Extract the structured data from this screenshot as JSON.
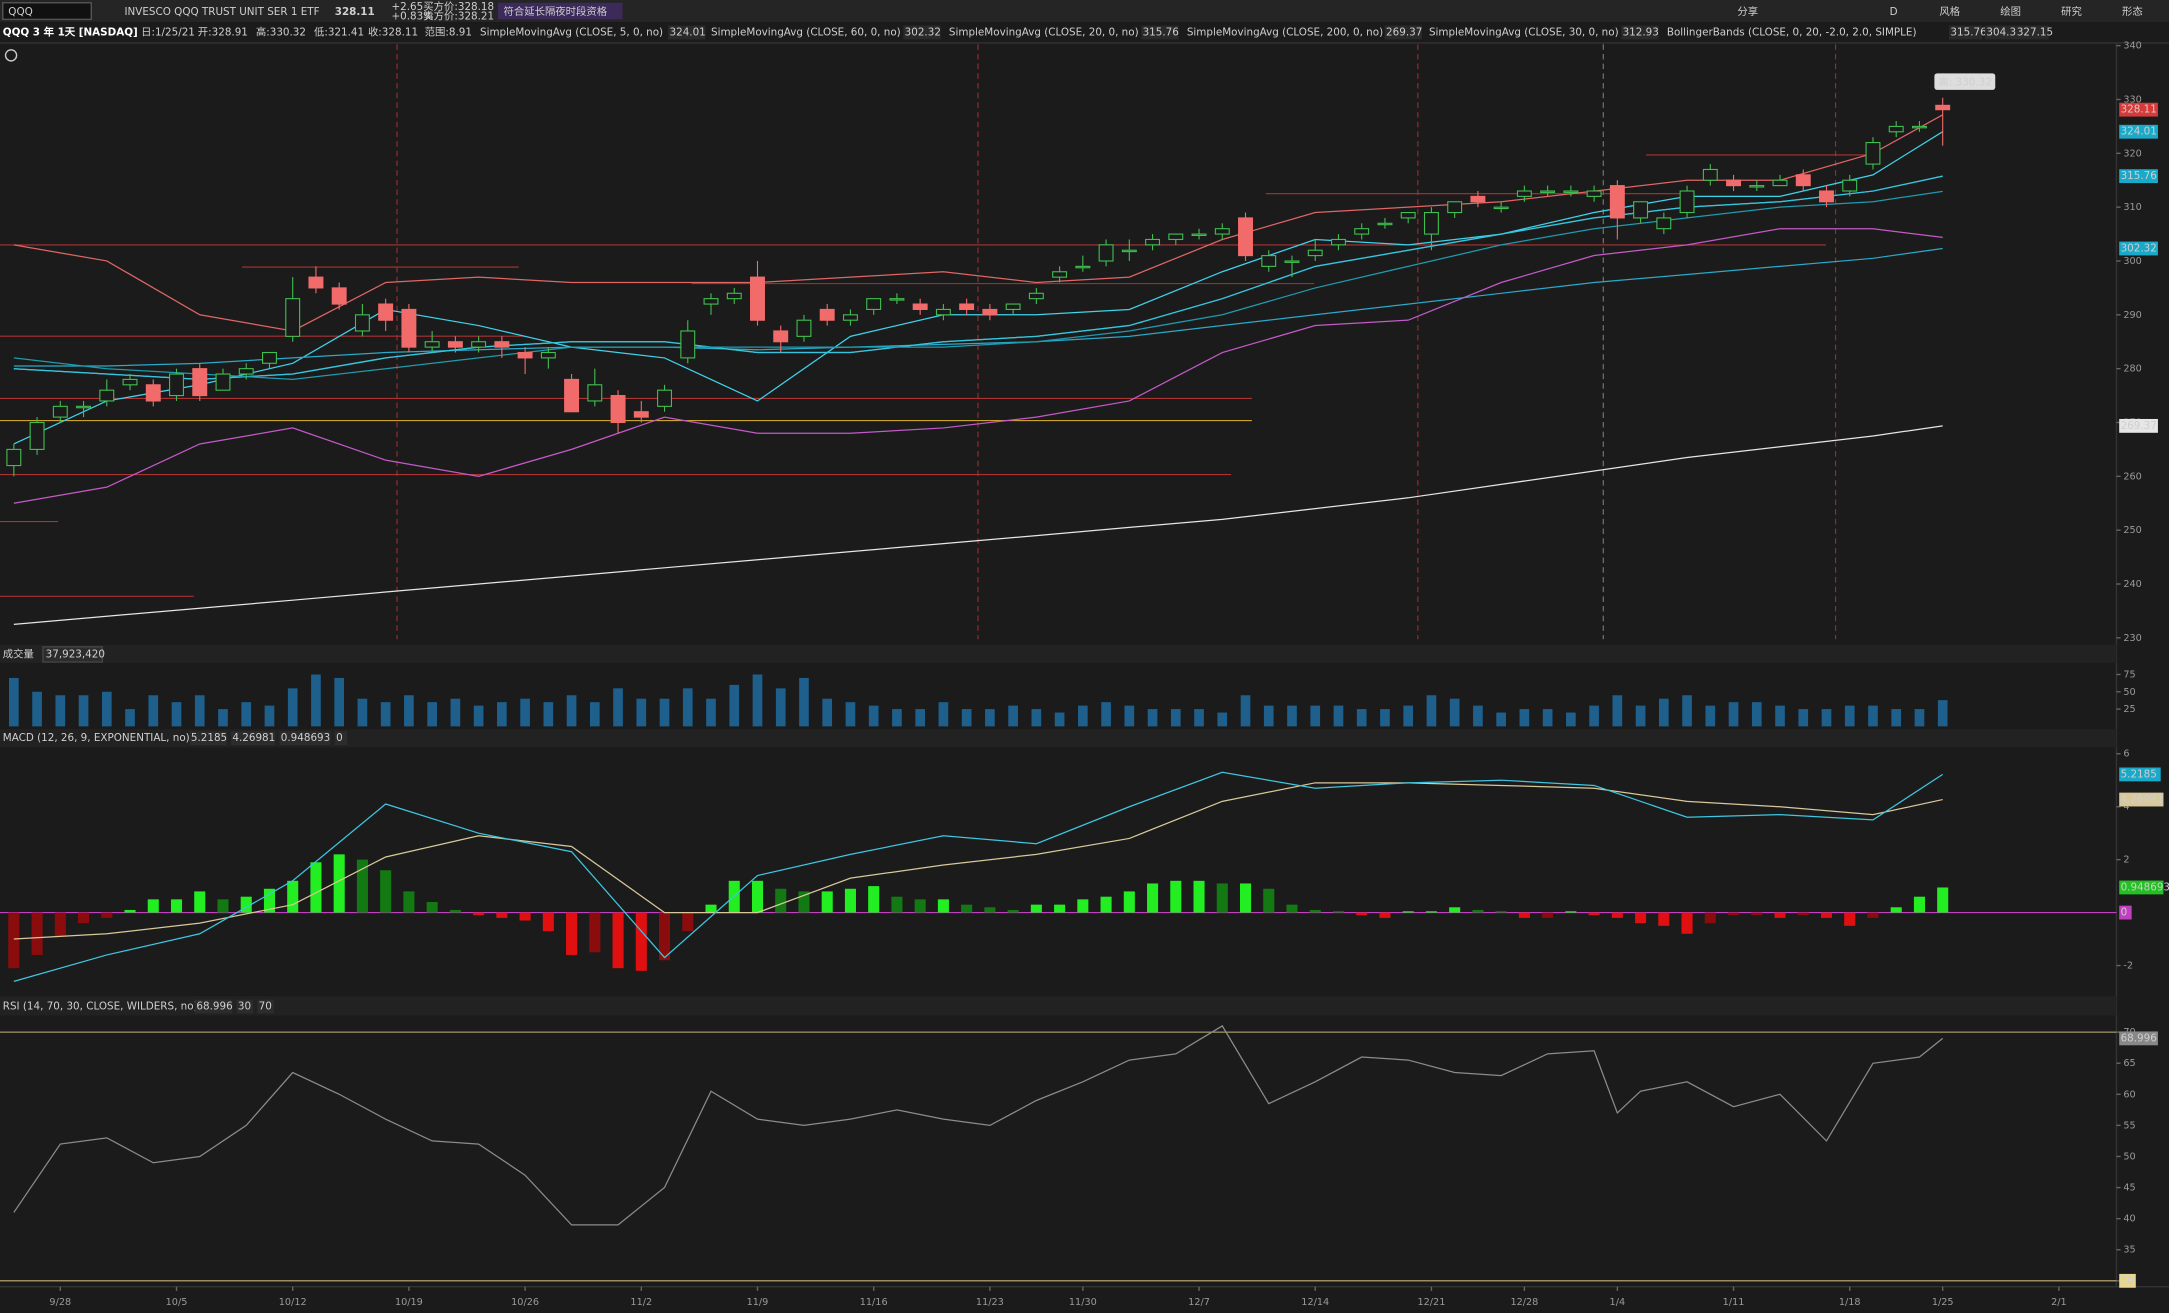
{
  "toolbar": {
    "symbol": "QQQ",
    "description": "INVESCO QQQ TRUST UNIT SER 1 ETF",
    "last": 328.11,
    "change": "+2.65",
    "change_pct": "+0.83%",
    "bid": "买方价:328.18",
    "ask": "卖方价:328.21",
    "extended": "符合延长隔夜时段资格",
    "buttons": [
      "分享",
      "D",
      "风格",
      "绘图",
      "研究",
      "形态"
    ]
  },
  "chart_info": {
    "title": "QQQ 3 年 1天 [NASDAQ]",
    "fields": [
      "日:1/25/21",
      "开:328.91",
      "高:330.32",
      "低:321.41",
      "收:328.11",
      "范围:8.91"
    ]
  },
  "x_axis": {
    "ticks": [
      {
        "value": 2,
        "label": "9/28"
      },
      {
        "value": 7,
        "label": "10/5"
      },
      {
        "value": 12,
        "label": "10/12"
      },
      {
        "value": 17,
        "label": "10/19"
      },
      {
        "value": 22,
        "label": "10/26"
      },
      {
        "value": 27,
        "label": "11/2"
      },
      {
        "value": 32,
        "label": "11/9"
      },
      {
        "value": 37,
        "label": "11/16"
      },
      {
        "value": 42,
        "label": "11/23"
      },
      {
        "value": 46,
        "label": "11/30"
      },
      {
        "value": 51,
        "label": "12/7"
      },
      {
        "value": 56,
        "label": "12/14"
      },
      {
        "value": 61,
        "label": "12/21"
      },
      {
        "value": 65,
        "label": "12/28"
      },
      {
        "value": 69,
        "label": "1/4"
      },
      {
        "value": 74,
        "label": "1/11"
      },
      {
        "value": 79,
        "label": "1/18"
      },
      {
        "value": 83,
        "label": "1/25"
      },
      {
        "value": 88,
        "label": "2/1"
      }
    ]
  },
  "price_panel": {
    "ylim": [
      230,
      340
    ],
    "yticks": [
      230,
      240,
      250,
      260,
      270,
      280,
      290,
      300,
      310,
      320,
      330,
      340
    ],
    "high_callout": "高: 330.32",
    "candles": [
      [
        262,
        266,
        260,
        265
      ],
      [
        265,
        271,
        264,
        270
      ],
      [
        271,
        274,
        270,
        273
      ],
      [
        273,
        274,
        271,
        273
      ],
      [
        274,
        278,
        273,
        276
      ],
      [
        277,
        279,
        276,
        278
      ],
      [
        277,
        278,
        273,
        274
      ],
      [
        275,
        280,
        274,
        279
      ],
      [
        280,
        281,
        274,
        275
      ],
      [
        276,
        280,
        276,
        279
      ],
      [
        279,
        281,
        278,
        280
      ],
      [
        281,
        283,
        280,
        283
      ],
      [
        286,
        297,
        285,
        293
      ],
      [
        297,
        299,
        294,
        295
      ],
      [
        295,
        296,
        291,
        292
      ],
      [
        287,
        292,
        286,
        290
      ],
      [
        292,
        293,
        287,
        289
      ],
      [
        291,
        292,
        283,
        284
      ],
      [
        284,
        287,
        283,
        285
      ],
      [
        285,
        286,
        283,
        284
      ],
      [
        284,
        286,
        283,
        285
      ],
      [
        285,
        286,
        282,
        284
      ],
      [
        283,
        284,
        279,
        282
      ],
      [
        282,
        284,
        280,
        283
      ],
      [
        278,
        279,
        272,
        272
      ],
      [
        274,
        280,
        273,
        277
      ],
      [
        275,
        276,
        268,
        270
      ],
      [
        272,
        274,
        270,
        271
      ],
      [
        273,
        277,
        272,
        276
      ],
      [
        282,
        289,
        281,
        287
      ],
      [
        292,
        294,
        290,
        293
      ],
      [
        293,
        295,
        292,
        294
      ],
      [
        297,
        300,
        288,
        289
      ],
      [
        287,
        288,
        283,
        285
      ],
      [
        286,
        290,
        285,
        289
      ],
      [
        291,
        292,
        288,
        289
      ],
      [
        289,
        291,
        288,
        290
      ],
      [
        291,
        293,
        290,
        293
      ],
      [
        293,
        294,
        292,
        293
      ],
      [
        292,
        293,
        290,
        291
      ],
      [
        290,
        292,
        289,
        291
      ],
      [
        292,
        293,
        290,
        291
      ],
      [
        291,
        292,
        289,
        290
      ],
      [
        291,
        292,
        290,
        292
      ],
      [
        293,
        295,
        292,
        294
      ],
      [
        297,
        299,
        296,
        298
      ],
      [
        299,
        301,
        298,
        299
      ],
      [
        300,
        304,
        299,
        303
      ],
      [
        302,
        304,
        300,
        302
      ],
      [
        303,
        305,
        302,
        304
      ],
      [
        304,
        305,
        303,
        305
      ],
      [
        305,
        306,
        304,
        305
      ],
      [
        305,
        307,
        304,
        306
      ],
      [
        308,
        309,
        300,
        301
      ],
      [
        299,
        302,
        298,
        301
      ],
      [
        300,
        301,
        297,
        300
      ],
      [
        301,
        304,
        300,
        302
      ],
      [
        303,
        305,
        302,
        304
      ],
      [
        305,
        307,
        304,
        306
      ],
      [
        307,
        308,
        306,
        307
      ],
      [
        308,
        309,
        307,
        309
      ],
      [
        305,
        310,
        302,
        309
      ],
      [
        309,
        311,
        308,
        311
      ],
      [
        312,
        313,
        310,
        311
      ],
      [
        310,
        311,
        309,
        310
      ],
      [
        312,
        314,
        311,
        313
      ],
      [
        313,
        314,
        312,
        313
      ],
      [
        313,
        314,
        312,
        313
      ],
      [
        312,
        314,
        311,
        313
      ],
      [
        314,
        315,
        304,
        308
      ],
      [
        308,
        311,
        307,
        311
      ],
      [
        306,
        309,
        305,
        308
      ],
      [
        309,
        314,
        308,
        313
      ],
      [
        315,
        318,
        314,
        317
      ],
      [
        315,
        316,
        313,
        314
      ],
      [
        314,
        315,
        313,
        314
      ],
      [
        314,
        316,
        314,
        315
      ],
      [
        316,
        317,
        313,
        314
      ],
      [
        313,
        314,
        310,
        311
      ],
      [
        313,
        316,
        312,
        315
      ],
      [
        318,
        323,
        317,
        322
      ],
      [
        324,
        326,
        323,
        325
      ],
      [
        325,
        326,
        324,
        325
      ],
      [
        328.91,
        330.32,
        321.41,
        328.11
      ]
    ],
    "sample_x": [
      0,
      4,
      8,
      12,
      16,
      20,
      24,
      28,
      32,
      36,
      40,
      44,
      48,
      52,
      56,
      60,
      64,
      68,
      72,
      76,
      80,
      83
    ],
    "studies": [
      {
        "label": "SimpleMovingAvg (CLOSE, 5, 0, no)",
        "value": 324.01,
        "color": "#3fd3ea",
        "values": [
          266,
          274,
          277,
          281,
          291,
          288,
          284,
          282,
          274,
          286,
          290,
          290,
          291,
          298,
          304,
          303,
          305,
          309,
          312,
          312,
          316,
          324.01
        ]
      },
      {
        "label": "SimpleMovingAvg (CLOSE, 60, 0, no)",
        "value": 302.32,
        "color": "#2aa9c9",
        "values": [
          280.5,
          280.5,
          281,
          282,
          283,
          283.5,
          284,
          284,
          283.5,
          284,
          284.5,
          285,
          286,
          288,
          290,
          292,
          294,
          296,
          297.5,
          299,
          300.5,
          302.32
        ]
      },
      {
        "label": "SimpleMovingAvg (CLOSE, 20, 0, no)",
        "value": 315.76,
        "color": "#36c3dc",
        "values": [
          280,
          279,
          278,
          279,
          282,
          284,
          285,
          285,
          283,
          283,
          285,
          286,
          288,
          293,
          299,
          302,
          305,
          308,
          310,
          311,
          313,
          315.76
        ]
      },
      {
        "label": "SimpleMovingAvg (CLOSE, 200, 0, no)",
        "value": 269.37,
        "color": "#e6e6e6",
        "values": [
          232.5,
          234,
          235.5,
          237,
          238.5,
          240,
          241.5,
          243,
          244.5,
          246,
          247.5,
          249,
          250.5,
          252,
          254,
          256,
          258.5,
          261,
          263.5,
          265.5,
          267.5,
          269.37
        ]
      },
      {
        "label": "SimpleMovingAvg (CLOSE, 30, 0, no)",
        "value": 312.93,
        "color": "#1f9aae",
        "values": [
          282,
          280,
          279,
          278,
          280,
          282,
          284,
          284,
          284,
          284,
          284,
          285,
          287,
          290,
          295,
          299,
          303,
          306,
          308,
          310,
          311,
          312.93
        ]
      }
    ],
    "bollinger": {
      "label": "BollingerBands (CLOSE, 0, 20, -2.0, 2.0, SIMPLE)",
      "bands": [
        {
          "value": 315.76,
          "color": "#36c3dc",
          "values": [
            280,
            279,
            278,
            279,
            282,
            284,
            285,
            285,
            283,
            283,
            285,
            286,
            288,
            293,
            299,
            302,
            305,
            308,
            310,
            311,
            313,
            315.76
          ]
        },
        {
          "value": 304.38,
          "color": "#c45ac8",
          "values": [
            255,
            258,
            266,
            269,
            263,
            260,
            265,
            271,
            268,
            268,
            269,
            271,
            274,
            283,
            288,
            289,
            296,
            301,
            303,
            306,
            306,
            304.38
          ]
        },
        {
          "value": 327.15,
          "color": "#e06666",
          "values": [
            303,
            300,
            290,
            287,
            296,
            297,
            296,
            296,
            296,
            297,
            298,
            296,
            297,
            304,
            309,
            310,
            311,
            313,
            315,
            315,
            320,
            327.15
          ]
        }
      ]
    }
  },
  "volume": {
    "label": "成交量",
    "total": "37,923,420",
    "color": "#1e5f8c",
    "ylim": [
      0,
      90
    ],
    "yticks": [
      25,
      50,
      75
    ],
    "values": [
      70,
      50,
      45,
      45,
      50,
      25,
      45,
      35,
      45,
      25,
      35,
      30,
      55,
      75,
      70,
      40,
      35,
      45,
      35,
      40,
      30,
      35,
      40,
      35,
      45,
      35,
      55,
      40,
      40,
      55,
      40,
      60,
      75,
      55,
      70,
      40,
      35,
      30,
      25,
      25,
      35,
      25,
      25,
      30,
      25,
      20,
      30,
      35,
      30,
      25,
      25,
      25,
      20,
      45,
      30,
      30,
      30,
      30,
      25,
      25,
      30,
      45,
      40,
      30,
      20,
      25,
      25,
      20,
      30,
      45,
      30,
      40,
      45,
      30,
      35,
      35,
      30,
      25,
      25,
      30,
      30,
      25,
      25,
      37.92
    ]
  },
  "macd": {
    "label": "MACD (12, 26, 9, EXPONENTIAL, no)",
    "value": 5.2185,
    "avg": 4.26981,
    "diff": 0.948693,
    "zero": 0,
    "ylim": [
      -3,
      6.25
    ],
    "yticks": [
      -2,
      2,
      4,
      6
    ],
    "histogram": [
      -2.1,
      -1.6,
      -0.9,
      -0.4,
      -0.2,
      0.1,
      0.5,
      0.5,
      0.8,
      0.5,
      0.6,
      0.9,
      1.2,
      1.9,
      2.2,
      2.0,
      1.6,
      0.8,
      0.4,
      0.1,
      -0.1,
      -0.2,
      -0.3,
      -0.7,
      -1.6,
      -1.5,
      -2.1,
      -2.2,
      -1.8,
      -0.7,
      0.3,
      1.2,
      1.2,
      0.9,
      0.8,
      0.8,
      0.9,
      1.0,
      0.6,
      0.5,
      0.5,
      0.3,
      0.2,
      0.1,
      0.3,
      0.3,
      0.5,
      0.6,
      0.8,
      1.1,
      1.2,
      1.2,
      1.1,
      1.1,
      0.9,
      0.3,
      0.1,
      0.05,
      -0.1,
      -0.2,
      0.05,
      0.05,
      0.2,
      0.1,
      0.05,
      -0.2,
      -0.2,
      0.05,
      -0.1,
      -0.2,
      -0.4,
      -0.5,
      -0.8,
      -0.4,
      -0.1,
      -0.1,
      -0.2,
      -0.1,
      -0.2,
      -0.5,
      -0.2,
      0.2,
      0.6,
      0.948693
    ],
    "sample_x": [
      0,
      4,
      8,
      12,
      16,
      20,
      24,
      28,
      32,
      36,
      40,
      44,
      48,
      52,
      56,
      60,
      64,
      68,
      72,
      76,
      80,
      83
    ],
    "line": {
      "color": "#3fc6e0",
      "values": [
        -2.6,
        -1.6,
        -0.8,
        1.2,
        4.1,
        3.0,
        2.3,
        -1.7,
        1.4,
        2.2,
        2.9,
        2.6,
        4.0,
        5.3,
        4.7,
        4.9,
        5.0,
        4.8,
        3.6,
        3.7,
        3.5,
        5.2185
      ]
    },
    "signal": {
      "color": "#d8c89a",
      "values": [
        -1.0,
        -0.8,
        -0.4,
        0.3,
        2.1,
        2.9,
        2.5,
        0.0,
        0.0,
        1.3,
        1.8,
        2.2,
        2.8,
        4.2,
        4.9,
        4.9,
        4.8,
        4.7,
        4.2,
        4.0,
        3.7,
        4.26981
      ]
    }
  },
  "rsi": {
    "label": "RSI (14, 70, 30, CLOSE, WILDERS, no)",
    "value": 68.996,
    "oversold": 30,
    "overbought": 70,
    "ylim": [
      29.5,
      72
    ],
    "yticks": [
      30,
      35,
      40,
      45,
      50,
      55,
      60,
      65,
      70
    ],
    "x": [
      0,
      2,
      4,
      6,
      8,
      10,
      12,
      14,
      16,
      18,
      20,
      22,
      24,
      26,
      28,
      30,
      32,
      34,
      36,
      38,
      40,
      42,
      44,
      46,
      48,
      50,
      52,
      54,
      56,
      58,
      60,
      62,
      64,
      66,
      68,
      69,
      70,
      72,
      74,
      76,
      78,
      80,
      82,
      83
    ],
    "values": [
      41,
      52,
      53,
      49,
      50,
      55,
      63.5,
      60,
      56,
      52.5,
      52,
      47,
      39,
      39,
      45,
      60.5,
      56,
      55,
      56,
      57.5,
      56,
      55,
      59,
      62,
      65.5,
      66.5,
      71,
      58.5,
      62,
      66,
      65.5,
      63.5,
      63,
      66.5,
      67,
      57,
      60.5,
      62,
      58,
      60,
      52.5,
      65,
      66,
      68.996
    ]
  }
}
